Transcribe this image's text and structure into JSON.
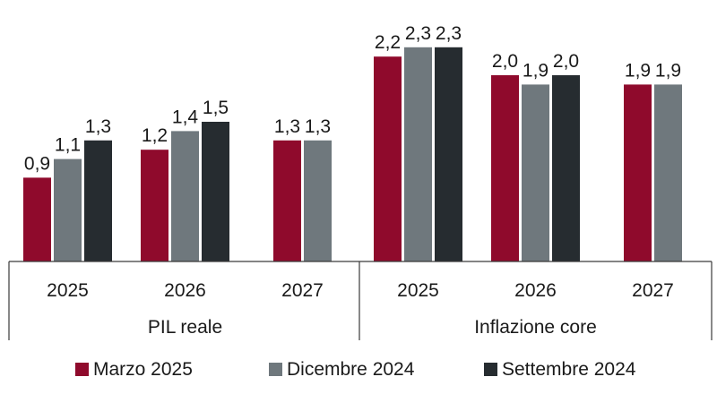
{
  "chart_data": {
    "type": "bar",
    "groups": [
      {
        "name": "PIL reale",
        "categories": [
          "2025",
          "2026",
          "2027"
        ],
        "series_values": [
          [
            0.9,
            1.2,
            1.3
          ],
          [
            1.1,
            1.4,
            1.3
          ],
          [
            1.3,
            1.5,
            null
          ]
        ],
        "value_labels": [
          [
            "0,9",
            "1,2",
            "1,3"
          ],
          [
            "1,1",
            "1,4",
            "1,3"
          ],
          [
            "1,3",
            "1,5",
            null
          ]
        ]
      },
      {
        "name": "Inflazione core",
        "categories": [
          "2025",
          "2026",
          "2027"
        ],
        "series_values": [
          [
            2.2,
            2.0,
            1.9
          ],
          [
            2.3,
            1.9,
            1.9
          ],
          [
            2.3,
            2.0,
            null
          ]
        ],
        "value_labels": [
          [
            "2,2",
            "2,0",
            "1,9"
          ],
          [
            "2,3",
            "1,9",
            "1,9"
          ],
          [
            "2,3",
            "2,0",
            null
          ]
        ]
      }
    ],
    "series": [
      {
        "name": "Marzo 2025",
        "color": "#8f0a2c"
      },
      {
        "name": "Dicembre 2024",
        "color": "#6f787d"
      },
      {
        "name": "Settembre 2024",
        "color": "#262c30"
      }
    ],
    "ylim": [
      0,
      2.55
    ],
    "grid": false,
    "legend_position": "bottom"
  }
}
